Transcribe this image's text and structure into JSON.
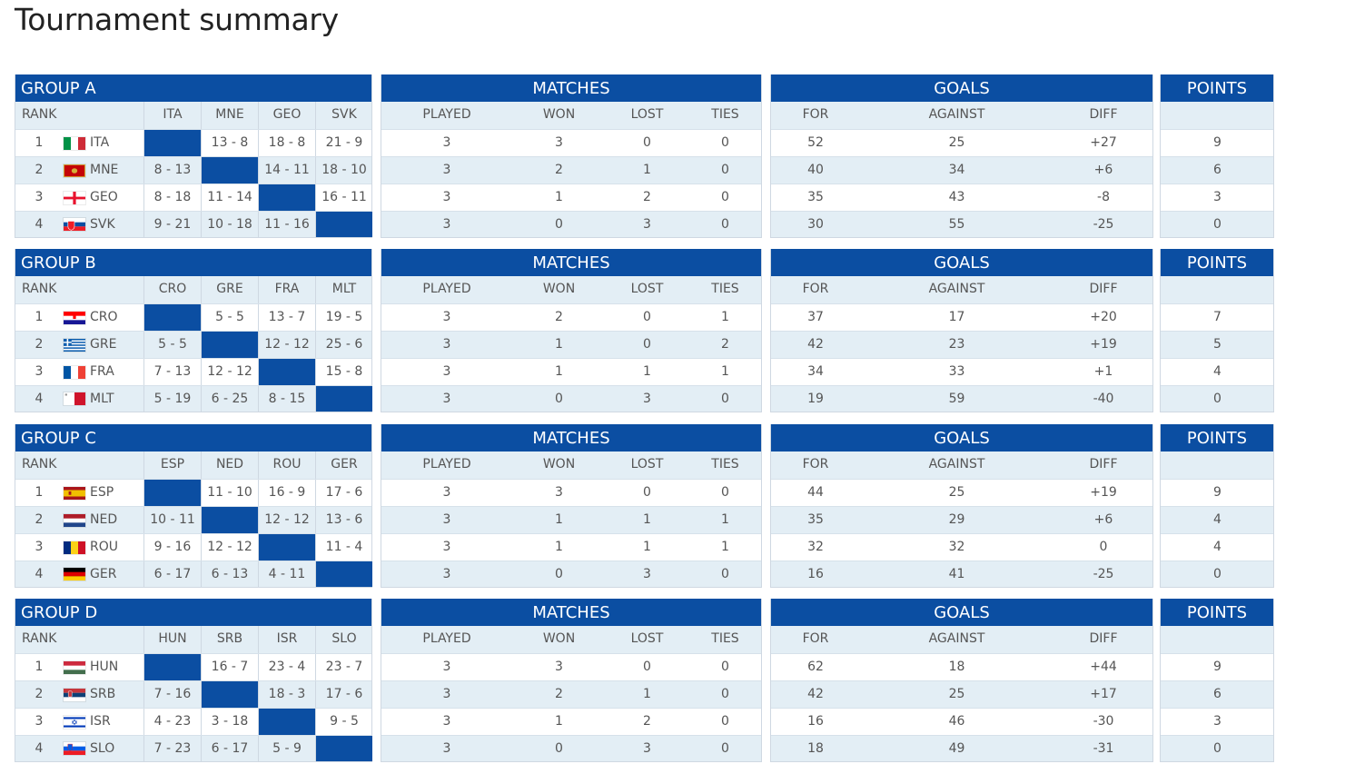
{
  "page": {
    "title": "Tournament summary"
  },
  "labels": {
    "rank": "RANK",
    "matches": "MATCHES",
    "goals": "GOALS",
    "points": "POINTS",
    "played": "PLAYED",
    "won": "WON",
    "lost": "LOST",
    "ties": "TIES",
    "for": "FOR",
    "against": "AGAINST",
    "diff": "DIFF"
  },
  "colors": {
    "header_blue": "#0b4ea2",
    "alt_row": "#e3eef5",
    "border": "#cfd8e2"
  },
  "groups": [
    {
      "name": "GROUP A",
      "columns": [
        "ITA",
        "MNE",
        "GEO",
        "SVK"
      ],
      "teams": [
        {
          "rank": "1",
          "code": "ITA",
          "flag": "italy-flag-icon",
          "results": [
            "",
            "13 - 8",
            "18 - 8",
            "21 - 9"
          ],
          "played": "3",
          "won": "3",
          "lost": "0",
          "ties": "0",
          "for": "52",
          "against": "25",
          "diff": "+27",
          "points": "9"
        },
        {
          "rank": "2",
          "code": "MNE",
          "flag": "montenegro-flag-icon",
          "results": [
            "8 - 13",
            "",
            "14 - 11",
            "18 - 10"
          ],
          "played": "3",
          "won": "2",
          "lost": "1",
          "ties": "0",
          "for": "40",
          "against": "34",
          "diff": "+6",
          "points": "6"
        },
        {
          "rank": "3",
          "code": "GEO",
          "flag": "georgia-flag-icon",
          "results": [
            "8 - 18",
            "11 - 14",
            "",
            "16 - 11"
          ],
          "played": "3",
          "won": "1",
          "lost": "2",
          "ties": "0",
          "for": "35",
          "against": "43",
          "diff": "-8",
          "points": "3"
        },
        {
          "rank": "4",
          "code": "SVK",
          "flag": "slovakia-flag-icon",
          "results": [
            "9 - 21",
            "10 - 18",
            "11 - 16",
            ""
          ],
          "played": "3",
          "won": "0",
          "lost": "3",
          "ties": "0",
          "for": "30",
          "against": "55",
          "diff": "-25",
          "points": "0"
        }
      ]
    },
    {
      "name": "GROUP B",
      "columns": [
        "CRO",
        "GRE",
        "FRA",
        "MLT"
      ],
      "teams": [
        {
          "rank": "1",
          "code": "CRO",
          "flag": "croatia-flag-icon",
          "results": [
            "",
            "5 - 5",
            "13 - 7",
            "19 - 5"
          ],
          "played": "3",
          "won": "2",
          "lost": "0",
          "ties": "1",
          "for": "37",
          "against": "17",
          "diff": "+20",
          "points": "7"
        },
        {
          "rank": "2",
          "code": "GRE",
          "flag": "greece-flag-icon",
          "results": [
            "5 - 5",
            "",
            "12 - 12",
            "25 - 6"
          ],
          "played": "3",
          "won": "1",
          "lost": "0",
          "ties": "2",
          "for": "42",
          "against": "23",
          "diff": "+19",
          "points": "5"
        },
        {
          "rank": "3",
          "code": "FRA",
          "flag": "france-flag-icon",
          "results": [
            "7 - 13",
            "12 - 12",
            "",
            "15 - 8"
          ],
          "played": "3",
          "won": "1",
          "lost": "1",
          "ties": "1",
          "for": "34",
          "against": "33",
          "diff": "+1",
          "points": "4"
        },
        {
          "rank": "4",
          "code": "MLT",
          "flag": "malta-flag-icon",
          "results": [
            "5 - 19",
            "6 - 25",
            "8 - 15",
            ""
          ],
          "played": "3",
          "won": "0",
          "lost": "3",
          "ties": "0",
          "for": "19",
          "against": "59",
          "diff": "-40",
          "points": "0"
        }
      ]
    },
    {
      "name": "GROUP C",
      "columns": [
        "ESP",
        "NED",
        "ROU",
        "GER"
      ],
      "teams": [
        {
          "rank": "1",
          "code": "ESP",
          "flag": "spain-flag-icon",
          "results": [
            "",
            "11 - 10",
            "16 - 9",
            "17 - 6"
          ],
          "played": "3",
          "won": "3",
          "lost": "0",
          "ties": "0",
          "for": "44",
          "against": "25",
          "diff": "+19",
          "points": "9"
        },
        {
          "rank": "2",
          "code": "NED",
          "flag": "netherlands-flag-icon",
          "results": [
            "10 - 11",
            "",
            "12 - 12",
            "13 - 6"
          ],
          "played": "3",
          "won": "1",
          "lost": "1",
          "ties": "1",
          "for": "35",
          "against": "29",
          "diff": "+6",
          "points": "4"
        },
        {
          "rank": "3",
          "code": "ROU",
          "flag": "romania-flag-icon",
          "results": [
            "9 - 16",
            "12 - 12",
            "",
            "11 - 4"
          ],
          "played": "3",
          "won": "1",
          "lost": "1",
          "ties": "1",
          "for": "32",
          "against": "32",
          "diff": "0",
          "points": "4"
        },
        {
          "rank": "4",
          "code": "GER",
          "flag": "germany-flag-icon",
          "results": [
            "6 - 17",
            "6 - 13",
            "4 - 11",
            ""
          ],
          "played": "3",
          "won": "0",
          "lost": "3",
          "ties": "0",
          "for": "16",
          "against": "41",
          "diff": "-25",
          "points": "0"
        }
      ]
    },
    {
      "name": "GROUP D",
      "columns": [
        "HUN",
        "SRB",
        "ISR",
        "SLO"
      ],
      "teams": [
        {
          "rank": "1",
          "code": "HUN",
          "flag": "hungary-flag-icon",
          "results": [
            "",
            "16 - 7",
            "23 - 4",
            "23 - 7"
          ],
          "played": "3",
          "won": "3",
          "lost": "0",
          "ties": "0",
          "for": "62",
          "against": "18",
          "diff": "+44",
          "points": "9"
        },
        {
          "rank": "2",
          "code": "SRB",
          "flag": "serbia-flag-icon",
          "results": [
            "7 - 16",
            "",
            "18 - 3",
            "17 - 6"
          ],
          "played": "3",
          "won": "2",
          "lost": "1",
          "ties": "0",
          "for": "42",
          "against": "25",
          "diff": "+17",
          "points": "6"
        },
        {
          "rank": "3",
          "code": "ISR",
          "flag": "israel-flag-icon",
          "results": [
            "4 - 23",
            "3 - 18",
            "",
            "9 - 5"
          ],
          "played": "3",
          "won": "1",
          "lost": "2",
          "ties": "0",
          "for": "16",
          "against": "46",
          "diff": "-30",
          "points": "3"
        },
        {
          "rank": "4",
          "code": "SLO",
          "flag": "slovenia-flag-icon",
          "results": [
            "7 - 23",
            "6 - 17",
            "5 - 9",
            ""
          ],
          "played": "3",
          "won": "0",
          "lost": "3",
          "ties": "0",
          "for": "18",
          "against": "49",
          "diff": "-31",
          "points": "0"
        }
      ]
    }
  ]
}
